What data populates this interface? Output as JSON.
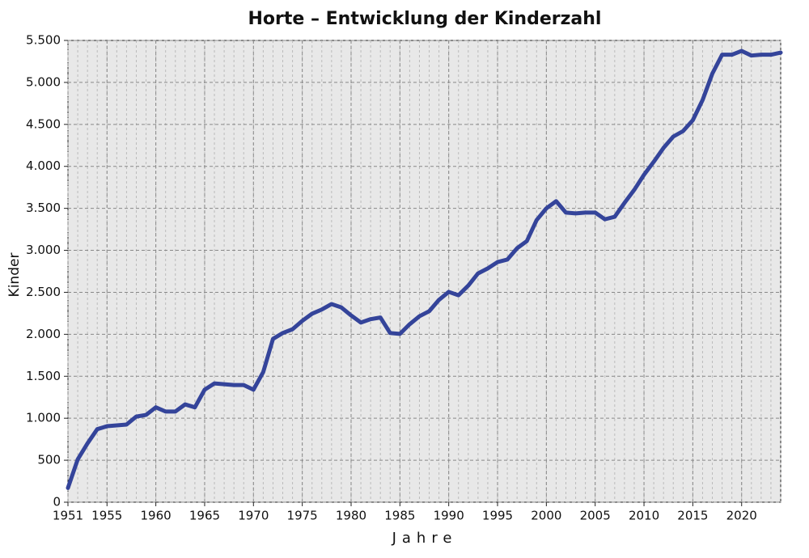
{
  "chart_data": {
    "type": "line",
    "title": "Horte – Entwicklung der Kinderzahl",
    "x_label": "Jahre",
    "y_label": "Kinder",
    "x": [
      1951,
      1952,
      1953,
      1954,
      1955,
      1956,
      1957,
      1958,
      1959,
      1960,
      1961,
      1962,
      1963,
      1964,
      1965,
      1966,
      1967,
      1968,
      1969,
      1970,
      1971,
      1972,
      1973,
      1974,
      1975,
      1976,
      1977,
      1978,
      1979,
      1980,
      1981,
      1982,
      1983,
      1984,
      1985,
      1986,
      1987,
      1988,
      1989,
      1990,
      1991,
      1992,
      1993,
      1994,
      1995,
      1996,
      1997,
      1998,
      1999,
      2000,
      2001,
      2002,
      2003,
      2004,
      2005,
      2006,
      2007,
      2008,
      2009,
      2010,
      2011,
      2012,
      2013,
      2014,
      2015,
      2016,
      2017,
      2018,
      2019,
      2020,
      2021,
      2022,
      2023,
      2024
    ],
    "series": [
      {
        "name": "Kinder",
        "color": "#34449a",
        "values": [
          170,
          510,
          700,
          870,
          905,
          915,
          925,
          1020,
          1040,
          1130,
          1080,
          1080,
          1165,
          1130,
          1340,
          1415,
          1405,
          1395,
          1395,
          1340,
          1550,
          1945,
          2015,
          2060,
          2160,
          2245,
          2295,
          2360,
          2320,
          2225,
          2140,
          2180,
          2200,
          2015,
          2005,
          2120,
          2215,
          2275,
          2410,
          2505,
          2465,
          2580,
          2725,
          2785,
          2860,
          2890,
          3025,
          3110,
          3360,
          3500,
          3585,
          3450,
          3440,
          3450,
          3450,
          3370,
          3400,
          3565,
          3720,
          3900,
          4055,
          4220,
          4355,
          4420,
          4550,
          4790,
          5105,
          5330,
          5330,
          5375,
          5320,
          5330,
          5330,
          5355
        ]
      }
    ],
    "xlim": [
      1951,
      2024
    ],
    "xticks": [
      1951,
      1955,
      1960,
      1965,
      1970,
      1975,
      1980,
      1985,
      1990,
      1995,
      2000,
      2005,
      2010,
      2015,
      2020
    ],
    "ylim": [
      0,
      5500
    ],
    "yticks": [
      0,
      500,
      {
        "value": 1000,
        "label": "1.000"
      },
      {
        "value": 1500,
        "label": "1.500"
      },
      {
        "value": 2000,
        "label": "2.000"
      },
      {
        "value": 2500,
        "label": "2.500"
      },
      {
        "value": 3000,
        "label": "3.000"
      },
      {
        "value": 3500,
        "label": "3.500"
      },
      {
        "value": 4000,
        "label": "4.000"
      },
      {
        "value": 4500,
        "label": "4.500"
      },
      {
        "value": 5000,
        "label": "5.000"
      },
      {
        "value": 5500,
        "label": "5.500"
      }
    ],
    "grid": true,
    "plot_background": "#e8e8e8"
  }
}
